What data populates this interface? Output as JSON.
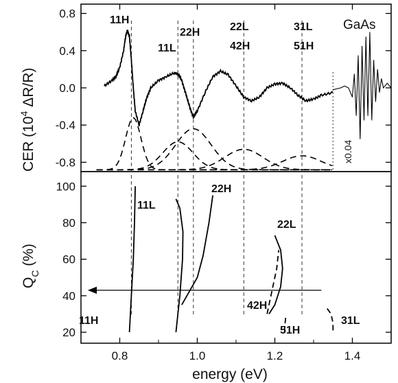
{
  "chart_data": [
    {
      "type": "line",
      "panel": "top",
      "ylabel": "CER (10<sup>4</sup> ΔR/R)",
      "ylabel_parts": {
        "pre": "CER (10",
        "sup": "4",
        "post": " ΔR/R)"
      },
      "ylim": [
        -0.9,
        0.9
      ],
      "yticks": [
        -0.8,
        -0.4,
        0.0,
        0.4,
        0.8
      ],
      "ytick_labels": [
        "-0.8",
        "-0.4",
        "0.0",
        "0.4",
        "0.8"
      ],
      "series": [
        {
          "style": "measured-noisy",
          "x": [
            0.76,
            0.78,
            0.79,
            0.8,
            0.81,
            0.815,
            0.82,
            0.825,
            0.83,
            0.835,
            0.84,
            0.85,
            0.86,
            0.87,
            0.88,
            0.9,
            0.92,
            0.94,
            0.95,
            0.96,
            0.97,
            0.98,
            0.99,
            1.0,
            1.02,
            1.04,
            1.06,
            1.08,
            1.1,
            1.12,
            1.14,
            1.16,
            1.18,
            1.2,
            1.22,
            1.24,
            1.26,
            1.28,
            1.3,
            1.32,
            1.35
          ],
          "y": [
            0.02,
            0.08,
            0.12,
            0.22,
            0.4,
            0.55,
            0.62,
            0.55,
            0.3,
            0.0,
            -0.25,
            -0.4,
            -0.25,
            -0.1,
            0.0,
            0.08,
            0.12,
            0.16,
            0.15,
            0.08,
            -0.06,
            -0.2,
            -0.32,
            -0.25,
            -0.05,
            0.12,
            0.18,
            0.14,
            0.02,
            -0.1,
            -0.14,
            -0.1,
            0.0,
            0.04,
            0.05,
            0.0,
            -0.08,
            -0.14,
            -0.12,
            -0.08,
            -0.05
          ]
        },
        {
          "style": "gaas-scaled",
          "x": [
            1.35,
            1.37,
            1.38,
            1.39,
            1.4,
            1.405,
            1.41,
            1.415,
            1.42,
            1.425,
            1.43,
            1.435,
            1.44,
            1.445,
            1.45,
            1.455,
            1.46,
            1.465,
            1.47,
            1.475,
            1.48,
            1.49,
            1.5
          ],
          "y": [
            -0.02,
            0.0,
            0.02,
            0.0,
            -0.1,
            0.15,
            -0.3,
            0.35,
            -0.55,
            0.45,
            -0.35,
            0.55,
            -0.3,
            0.6,
            -0.35,
            0.3,
            -0.15,
            0.2,
            -0.05,
            0.1,
            0.0,
            0.05,
            0.0
          ]
        },
        {
          "style": "dashed",
          "name": "",
          "center": 0.835,
          "amp": 0.56,
          "width": 0.028
        },
        {
          "style": "dashed",
          "name": "",
          "center": 0.95,
          "amp": 0.3,
          "width": 0.055
        },
        {
          "style": "dashed",
          "name": "",
          "center": 0.99,
          "amp": 0.44,
          "width": 0.065
        },
        {
          "style": "dashed",
          "name": "",
          "center": 1.12,
          "amp": 0.22,
          "width": 0.07
        },
        {
          "style": "dashed",
          "name": "",
          "center": 1.27,
          "amp": 0.15,
          "width": 0.07
        }
      ],
      "annotations": [
        "11H",
        "11L",
        "22H",
        "22L",
        "42H",
        "31L",
        "51H",
        "GaAs",
        "x0.04"
      ]
    },
    {
      "type": "line",
      "panel": "bottom",
      "xlabel": "energy (eV)",
      "ylabel_parts": {
        "pre": "Q",
        "sub": "C",
        "post": " (%)"
      },
      "xlim": [
        0.7,
        1.5
      ],
      "xticks": [
        0.8,
        1.0,
        1.2,
        1.4
      ],
      "xtick_labels": [
        "0.8",
        "1.0",
        "1.2",
        "1.4"
      ],
      "ylim": [
        14,
        108
      ],
      "yticks": [
        20,
        40,
        60,
        80,
        100
      ],
      "ytick_labels": [
        "20",
        "40",
        "60",
        "80",
        "100"
      ],
      "series": [
        {
          "label": "11H",
          "style": "solid",
          "x": [
            0.825,
            0.83,
            0.835,
            0.838,
            0.84
          ],
          "y": [
            20,
            40,
            60,
            80,
            100
          ]
        },
        {
          "label": "11L",
          "style": "solid",
          "x": [
            0.945,
            0.955,
            0.962,
            0.963,
            0.955,
            0.945
          ],
          "y": [
            20,
            40,
            60,
            75,
            88,
            93
          ]
        },
        {
          "label": "22H",
          "style": "solid",
          "x": [
            0.96,
            1.0,
            1.015,
            1.03,
            1.04
          ],
          "y": [
            35,
            50,
            62,
            80,
            95
          ]
        },
        {
          "label": "22L",
          "style": "solid",
          "x": [
            1.2,
            1.215,
            1.22,
            1.215,
            1.2,
            1.185
          ],
          "y": [
            73,
            65,
            55,
            45,
            35,
            30
          ]
        },
        {
          "label": "42H",
          "style": "dashed",
          "x": [
            1.18,
            1.19,
            1.205,
            1.21
          ],
          "y": [
            30,
            40,
            55,
            65
          ]
        },
        {
          "label": "51H",
          "style": "dashed",
          "x": [
            1.225,
            1.226,
            1.228
          ],
          "y": [
            20,
            24,
            28
          ]
        },
        {
          "label": "31L",
          "style": "dashed",
          "x": [
            1.335,
            1.345,
            1.35,
            1.35
          ],
          "y": [
            33,
            30,
            25,
            20
          ]
        }
      ],
      "arrow": {
        "from": [
          1.32,
          43
        ],
        "to": [
          0.72,
          43
        ]
      },
      "annotations": [
        "11L",
        "22H",
        "22L",
        "42H",
        "11H",
        "51H",
        "31L"
      ]
    }
  ],
  "vlines_ev": [
    0.83,
    0.95,
    0.99,
    1.12,
    1.27
  ],
  "gaas_divider_ev": 1.35
}
